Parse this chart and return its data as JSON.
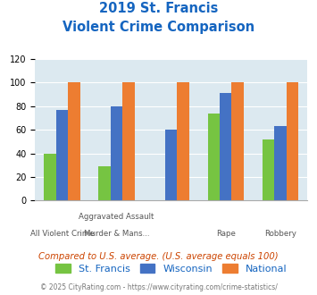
{
  "title_line1": "2019 St. Francis",
  "title_line2": "Violent Crime Comparison",
  "series": {
    "St. Francis": [
      40,
      29,
      0,
      74,
      52
    ],
    "Wisconsin": [
      77,
      80,
      60,
      91,
      63
    ],
    "National": [
      100,
      100,
      100,
      100,
      100
    ]
  },
  "colors": {
    "St. Francis": "#76c442",
    "Wisconsin": "#4472c4",
    "National": "#ed7d31"
  },
  "label_top": [
    "",
    "Aggravated Assault",
    "",
    "",
    ""
  ],
  "label_bot": [
    "All Violent Crime",
    "Murder & Mans...",
    "",
    "Rape",
    "Robbery"
  ],
  "ylim": [
    0,
    120
  ],
  "yticks": [
    0,
    20,
    40,
    60,
    80,
    100,
    120
  ],
  "title_color": "#1565c0",
  "background_color": "#dce9f0",
  "note": "Compared to U.S. average. (U.S. average equals 100)",
  "footer": "© 2025 CityRating.com - https://www.cityrating.com/crime-statistics/",
  "note_color": "#cc4400",
  "footer_color": "#777777"
}
